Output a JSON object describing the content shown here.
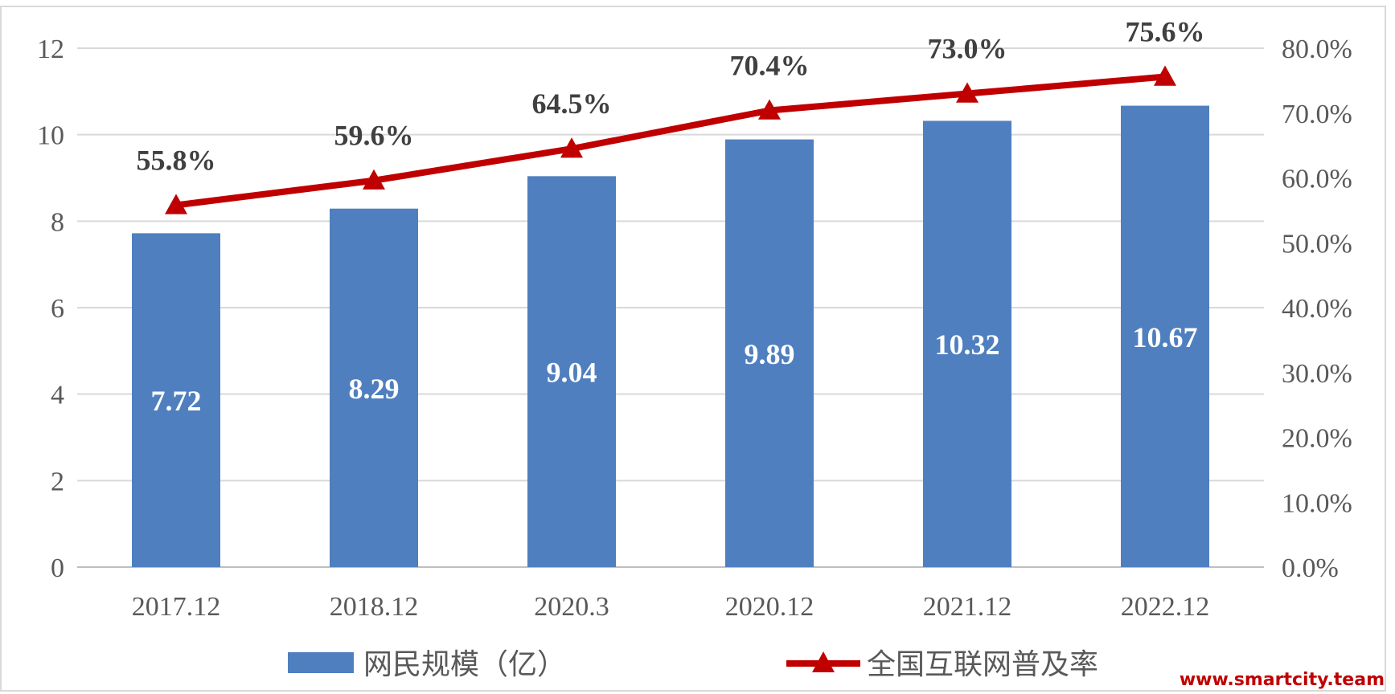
{
  "chart_data": {
    "type": "bar",
    "categories": [
      "2017.12",
      "2018.12",
      "2020.3",
      "2020.12",
      "2021.12",
      "2022.12"
    ],
    "series": [
      {
        "name": "网民规模（亿）",
        "type": "bar",
        "axis": "left",
        "values": [
          7.72,
          8.29,
          9.04,
          9.89,
          10.32,
          10.67
        ],
        "labels": [
          "7.72",
          "8.29",
          "9.04",
          "9.89",
          "10.32",
          "10.67"
        ],
        "color": "#4f7fbf"
      },
      {
        "name": "全国互联网普及率",
        "type": "line",
        "axis": "right",
        "marker": "triangle",
        "values": [
          55.8,
          59.6,
          64.5,
          70.4,
          73.0,
          75.6
        ],
        "labels": [
          "55.8%",
          "59.6%",
          "64.5%",
          "70.4%",
          "73.0%",
          "75.6%"
        ],
        "color": "#c00000"
      }
    ],
    "y_left": {
      "ylim": [
        0,
        12
      ],
      "ticks": [
        "0",
        "2",
        "4",
        "6",
        "8",
        "10",
        "12"
      ]
    },
    "y_right": {
      "ylim": [
        0,
        80
      ],
      "ticks": [
        "0.0%",
        "10.0%",
        "20.0%",
        "30.0%",
        "40.0%",
        "50.0%",
        "60.0%",
        "70.0%",
        "80.0%"
      ]
    },
    "grid": true,
    "legend_position": "bottom",
    "title": "",
    "xlabel": "",
    "ylabel": ""
  },
  "watermark": "www.smartcity.team"
}
